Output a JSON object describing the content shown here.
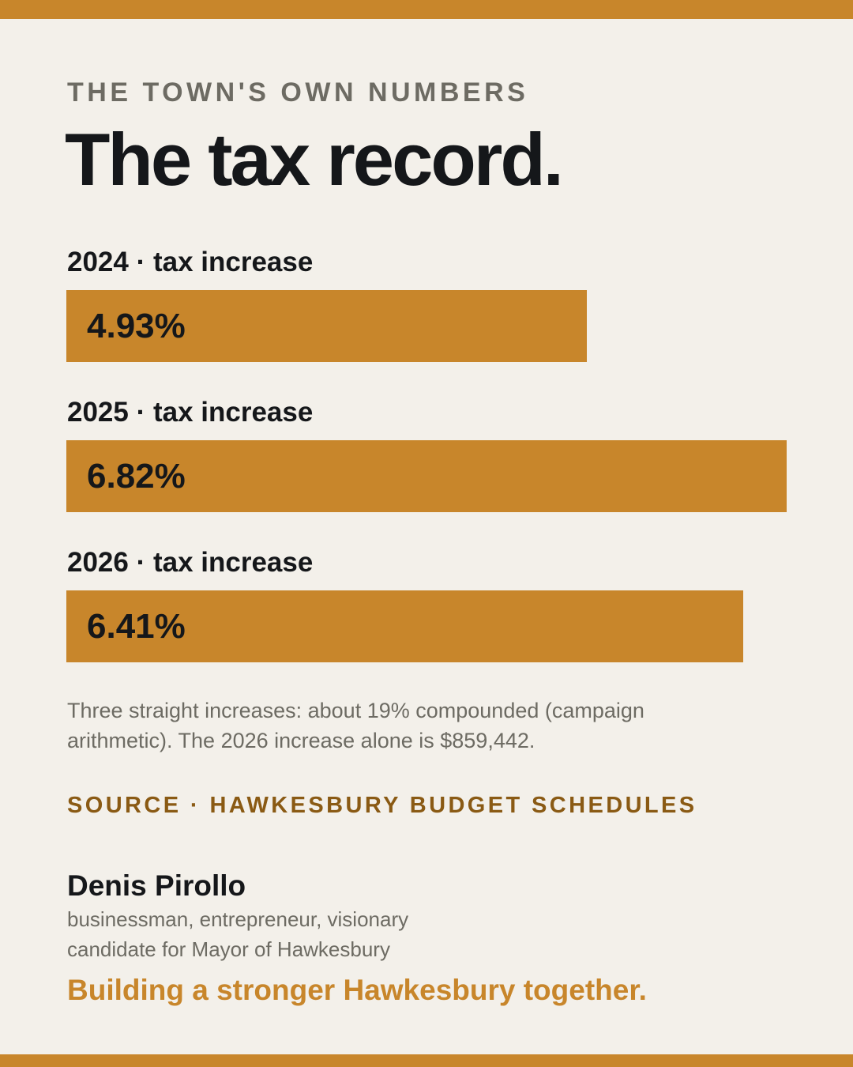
{
  "eyebrow": "THE TOWN'S OWN NUMBERS",
  "title": "The tax record.",
  "chart_data": {
    "type": "bar",
    "orientation": "horizontal",
    "categories": [
      "2024 · tax increase",
      "2025 · tax increase",
      "2026 · tax increase"
    ],
    "values": [
      4.93,
      6.82,
      6.41
    ],
    "value_labels": [
      "4.93%",
      "6.82%",
      "6.41%"
    ],
    "unit": "%",
    "xlim": [
      0,
      6.82
    ],
    "color": "#c8862b"
  },
  "note": "Three straight increases: about 19% compounded (campaign arithmetic). The 2026 increase alone is $859,442.",
  "source": "SOURCE · HAWKESBURY BUDGET SCHEDULES",
  "candidate": {
    "name": "Denis Pirollo",
    "descriptor": "businessman, entrepreneur, visionary",
    "role": "candidate for Mayor of Hawkesbury",
    "tagline": "Building a stronger Hawkesbury together."
  },
  "colors": {
    "accent": "#c8862b",
    "background": "#f3f0ea",
    "ink": "#15171a",
    "muted": "#6d6b63",
    "source": "#8a5a14"
  }
}
